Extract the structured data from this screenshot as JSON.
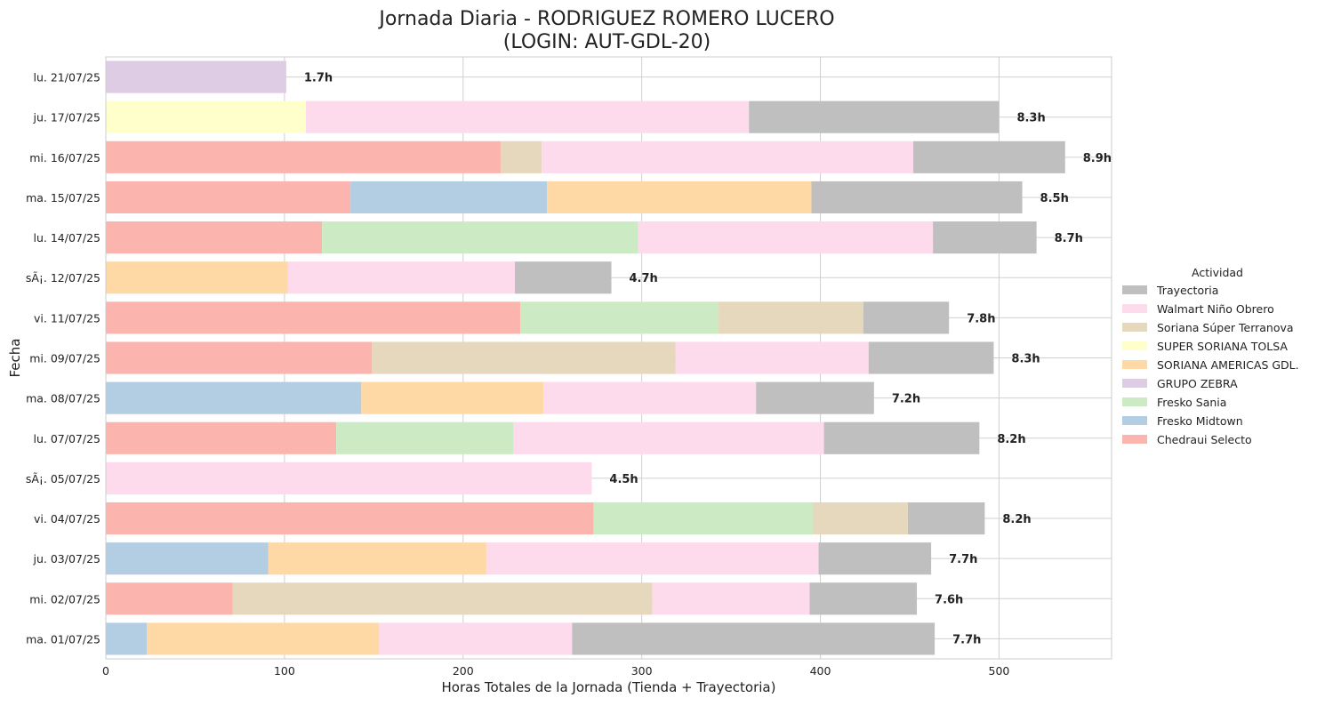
{
  "chart_data": {
    "type": "bar",
    "orientation": "horizontal",
    "stacked": true,
    "title": "Jornada Diaria - RODRIGUEZ ROMERO LUCERO\n(LOGIN: AUT-GDL-20)",
    "xlabel": "Horas Totales de la Jornada (Tienda + Trayectoria)",
    "ylabel": "Fecha",
    "xlim": [
      0,
      563
    ],
    "xticks": [
      0,
      100,
      200,
      300,
      400,
      500
    ],
    "grid": true,
    "legend": {
      "title": "Actividad",
      "placement": "center-right",
      "order": [
        "Trayectoria",
        "Walmart Niño Obrero",
        "Soriana Súper Terranova",
        "SUPER SORIANA TOLSA",
        "SORIANA AMERICAS GDL.",
        "GRUPO ZEBRA",
        "Fresko Sania",
        "Fresko Midtown",
        "Chedraui Selecto"
      ]
    },
    "stack_order": [
      "Chedraui Selecto",
      "Fresko Midtown",
      "Fresko Sania",
      "GRUPO ZEBRA",
      "SORIANA AMERICAS GDL.",
      "SUPER SORIANA TOLSA",
      "Soriana Súper Terranova",
      "Walmart Niño Obrero",
      "Trayectoria"
    ],
    "categories": [
      "lu. 21/07/25",
      "ju. 17/07/25",
      "mi. 16/07/25",
      "ma. 15/07/25",
      "lu. 14/07/25",
      "sÃ¡. 12/07/25",
      "vi. 11/07/25",
      "mi. 09/07/25",
      "ma. 08/07/25",
      "lu. 07/07/25",
      "sÃ¡. 05/07/25",
      "vi. 04/07/25",
      "ju. 03/07/25",
      "mi. 02/07/25",
      "ma. 01/07/25"
    ],
    "totals_labels": [
      "1.7h",
      "8.3h",
      "8.9h",
      "8.5h",
      "8.7h",
      "4.7h",
      "7.8h",
      "8.3h",
      "7.2h",
      "8.2h",
      "4.5h",
      "8.2h",
      "7.7h",
      "7.6h",
      "7.7h"
    ],
    "series": [
      {
        "name": "Chedraui Selecto",
        "color": "#fbb4ae",
        "values": [
          0,
          0,
          221,
          137,
          121,
          0,
          232,
          149,
          0,
          129,
          0,
          273,
          0,
          71,
          0
        ]
      },
      {
        "name": "Fresko Midtown",
        "color": "#b3cde3",
        "values": [
          0,
          0,
          0,
          110,
          0,
          0,
          0,
          0,
          143,
          0,
          0,
          0,
          91,
          0,
          23
        ]
      },
      {
        "name": "Fresko Sania",
        "color": "#ccebc5",
        "values": [
          0,
          0,
          0,
          0,
          177,
          0,
          111,
          0,
          0,
          99,
          0,
          123,
          0,
          0,
          0
        ]
      },
      {
        "name": "GRUPO ZEBRA",
        "color": "#decbe4",
        "values": [
          101,
          0,
          0,
          0,
          0,
          0,
          0,
          0,
          0,
          0,
          0,
          0,
          0,
          0,
          0
        ]
      },
      {
        "name": "SORIANA AMERICAS GDL.",
        "color": "#fed9a6",
        "values": [
          0,
          0,
          0,
          148,
          0,
          102,
          0,
          0,
          102,
          0,
          0,
          0,
          122,
          0,
          130
        ]
      },
      {
        "name": "SUPER SORIANA TOLSA",
        "color": "#ffffcc",
        "values": [
          0,
          112,
          0,
          0,
          0,
          0,
          0,
          0,
          0,
          0,
          0,
          0,
          0,
          0,
          0
        ]
      },
      {
        "name": "Soriana Súper Terranova",
        "color": "#e5d8bd",
        "values": [
          0,
          0,
          23,
          0,
          0,
          0,
          81,
          170,
          0,
          0,
          0,
          53,
          0,
          235,
          0
        ]
      },
      {
        "name": "Walmart Niño Obrero",
        "color": "#fddaec",
        "values": [
          0,
          248,
          208,
          0,
          165,
          127,
          0,
          108,
          119,
          174,
          272,
          0,
          186,
          88,
          108
        ]
      },
      {
        "name": "Trayectoria",
        "color": "#bfbfbf",
        "values": [
          0,
          140,
          85,
          118,
          58,
          54,
          48,
          70,
          66,
          87,
          0,
          43,
          63,
          60,
          203
        ]
      }
    ]
  }
}
